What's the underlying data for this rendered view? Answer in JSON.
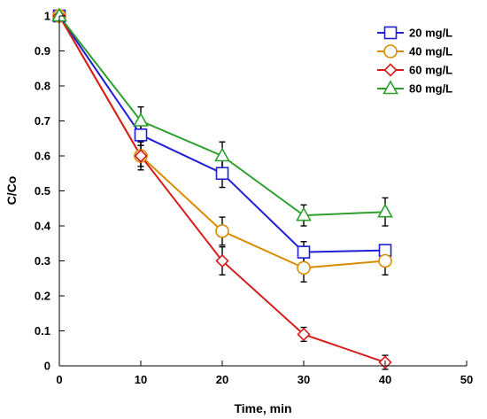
{
  "chart_data": {
    "type": "line",
    "title": "",
    "xlabel": "Time, min",
    "ylabel": "C/Co",
    "xlim": [
      0,
      50
    ],
    "ylim": [
      0,
      1
    ],
    "xticks": [
      "0",
      "10",
      "20",
      "30",
      "40",
      "50"
    ],
    "yticks": [
      "0",
      "0.1",
      "0.2",
      "0.3",
      "0.4",
      "0.5",
      "0.6",
      "0.7",
      "0.8",
      "0.9",
      "1"
    ],
    "grid": false,
    "legend_position": "top-right",
    "x": [
      0,
      10,
      20,
      30,
      40
    ],
    "series": [
      {
        "name": "20 mg/L",
        "color": "#1f1fd6",
        "marker": "square",
        "values": [
          1.0,
          0.66,
          0.55,
          0.325,
          0.33
        ],
        "error": [
          0.0,
          0.03,
          0.04,
          0.03,
          0.0
        ]
      },
      {
        "name": "40 mg/L",
        "color": "#d98c00",
        "marker": "circle",
        "values": [
          1.0,
          0.6,
          0.385,
          0.28,
          0.3
        ],
        "error": [
          0.0,
          0.03,
          0.04,
          0.04,
          0.04
        ]
      },
      {
        "name": "60 mg/L",
        "color": "#d81b1b",
        "marker": "diamond",
        "values": [
          1.0,
          0.6,
          0.3,
          0.09,
          0.01
        ],
        "error": [
          0.0,
          0.04,
          0.04,
          0.02,
          0.02
        ]
      },
      {
        "name": "80 mg/L",
        "color": "#2e9e2e",
        "marker": "triangle",
        "values": [
          1.0,
          0.7,
          0.6,
          0.43,
          0.44
        ],
        "error": [
          0.0,
          0.04,
          0.04,
          0.03,
          0.04
        ]
      }
    ]
  }
}
